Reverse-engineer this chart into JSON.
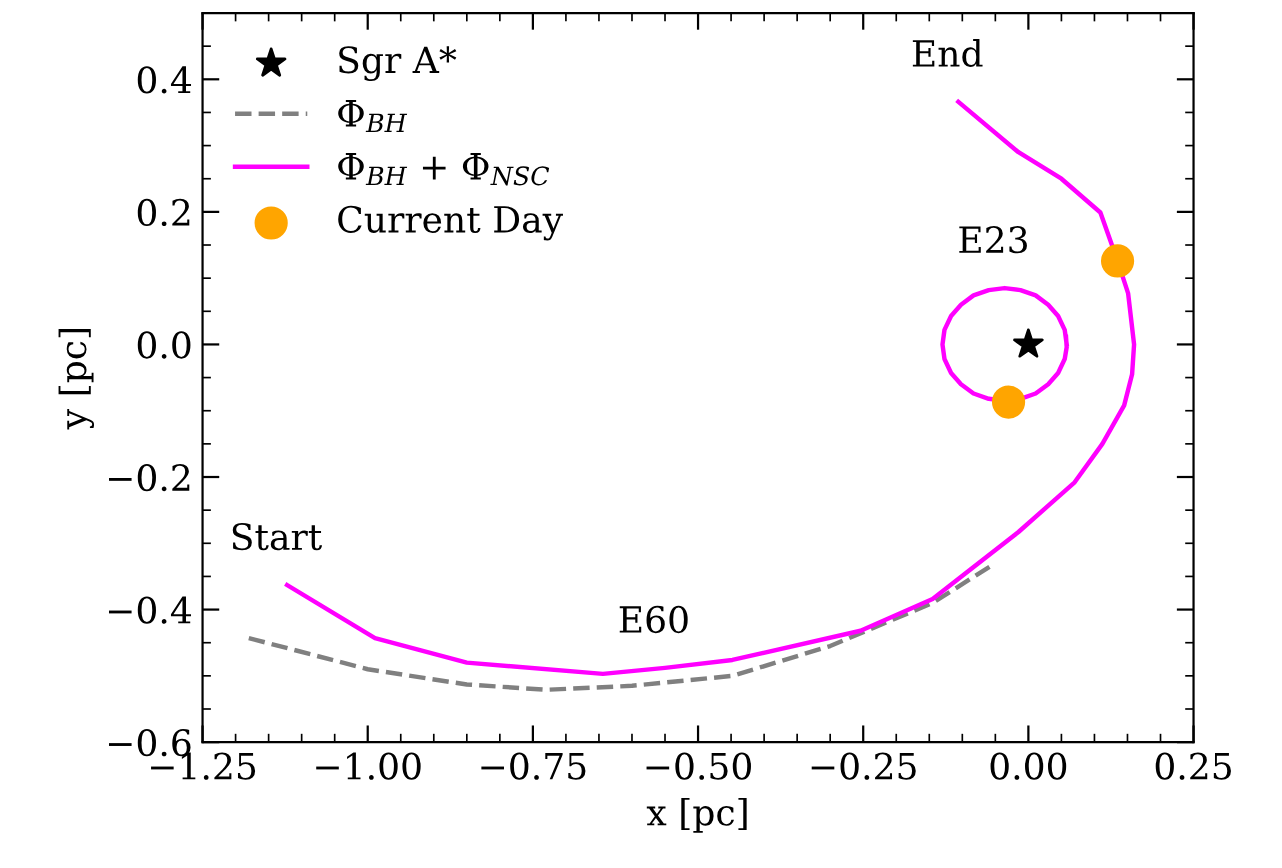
{
  "chart_data": {
    "type": "line",
    "xlabel": "x [pc]",
    "ylabel": "y [pc]",
    "xlim": [
      -1.25,
      0.25
    ],
    "xticks": [
      -1.25,
      {
        "value": -1.0,
        "label": "−1.00"
      },
      -0.75,
      {
        "value": -0.5,
        "label": "−0.50"
      },
      -0.25,
      {
        "value": 0.0,
        "label": "0.00"
      },
      0.25
    ],
    "ylim": [
      -0.6,
      0.5
    ],
    "yticks": [
      -0.6,
      -0.4,
      -0.2,
      {
        "value": 0.0,
        "label": "0.0"
      },
      0.2,
      0.4
    ],
    "grid": false,
    "legend": "top left",
    "series": [
      {
        "name": "Sgr A*",
        "type": "scatter",
        "marker": "star",
        "color": "#000000",
        "x": [
          0.0
        ],
        "values": [
          0.0
        ]
      },
      {
        "name": "Φ$_{BH}$",
        "line_style": "dashed",
        "color": "#808080",
        "x": [
          -1.18,
          -1.0,
          -0.85,
          -0.729,
          -0.6,
          -0.448,
          -0.3,
          -0.145,
          -0.05
        ],
        "values": [
          -0.443,
          -0.49,
          -0.513,
          -0.521,
          -0.515,
          -0.5,
          -0.455,
          -0.39,
          -0.33
        ]
      },
      {
        "name": "Φ$_{BH}$ + Φ$_{NSC}$",
        "line_style": "solid",
        "color": "#ff00ff",
        "x": [
          -1.122,
          -0.989,
          -0.85,
          -0.644,
          -0.55,
          -0.448,
          -0.254,
          -0.145,
          -0.015,
          0.07,
          0.112,
          0.145,
          0.157,
          0.16,
          0.151,
          0.135,
          0.109,
          0.05,
          -0.015,
          -0.106
        ],
        "values": [
          -0.363,
          -0.443,
          -0.48,
          -0.497,
          -0.488,
          -0.476,
          -0.432,
          -0.384,
          -0.283,
          -0.208,
          -0.15,
          -0.092,
          -0.045,
          0.0,
          0.077,
          0.126,
          0.199,
          0.25,
          0.29,
          0.366
        ]
      },
      {
        "line_style": "solid",
        "color": "#ff00ff",
        "x": [
          0.058,
          0.055,
          0.045,
          0.03,
          0.011,
          -0.012,
          -0.036,
          -0.06,
          -0.083,
          -0.102,
          -0.117,
          -0.127,
          -0.13,
          -0.127,
          -0.117,
          -0.102,
          -0.083,
          -0.06,
          -0.036,
          -0.012,
          0.011,
          0.03,
          0.045,
          0.055,
          0.058,
          0.057
        ],
        "values": [
          0.0,
          0.022,
          0.043,
          0.06,
          0.074,
          0.082,
          0.085,
          0.082,
          0.074,
          0.06,
          0.043,
          0.022,
          0.0,
          -0.022,
          -0.043,
          -0.06,
          -0.074,
          -0.082,
          -0.085,
          -0.082,
          -0.074,
          -0.06,
          -0.043,
          -0.022,
          -0.004,
          0.011
        ]
      },
      {
        "name": "Current Day",
        "type": "scatter",
        "marker": "circle",
        "color": "#ffa500",
        "x": [
          0.135,
          -0.03
        ],
        "values": [
          0.126,
          -0.087
        ]
      }
    ],
    "annotations": [
      {
        "text": "End",
        "x": -0.106,
        "y": 0.366
      },
      {
        "text": "E23",
        "x": -0.036,
        "y": 0.085
      },
      {
        "text": "Start",
        "x": -1.122,
        "y": -0.363
      },
      {
        "text": "E60",
        "x": -0.55,
        "y": -0.488
      }
    ]
  }
}
